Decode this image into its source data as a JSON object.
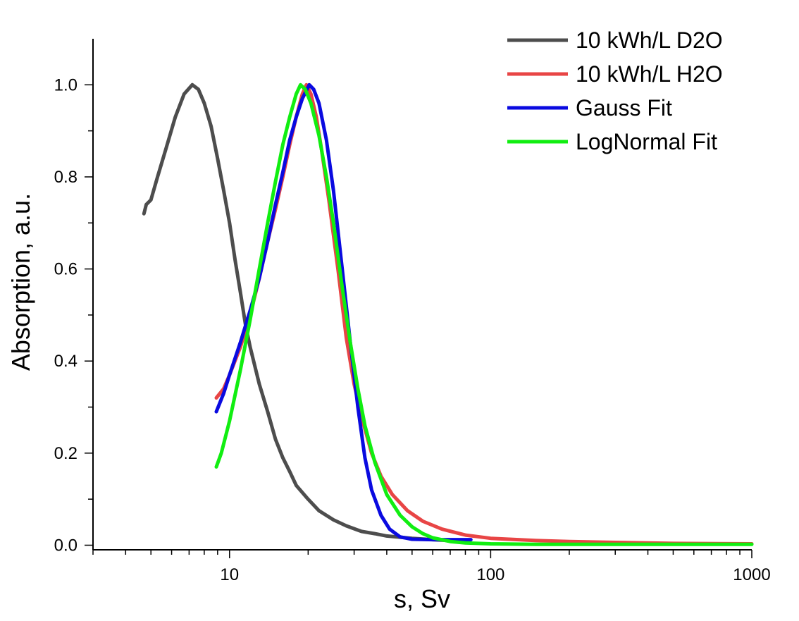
{
  "chart_data": {
    "type": "line",
    "title": "",
    "xlabel": "s, Sv",
    "ylabel": "Absorption, a.u.",
    "xscale": "log",
    "xlim": [
      3,
      1000
    ],
    "ylim": [
      -0.01,
      1.1
    ],
    "grid": false,
    "legend_position": "top-right",
    "x_ticks": [
      {
        "value": 10,
        "label": "10"
      },
      {
        "value": 100,
        "label": "100"
      },
      {
        "value": 1000,
        "label": "1000"
      }
    ],
    "y_ticks": [
      {
        "value": 0.0,
        "label": "0.0"
      },
      {
        "value": 0.2,
        "label": "0.2"
      },
      {
        "value": 0.4,
        "label": "0.4"
      },
      {
        "value": 0.6,
        "label": "0.6"
      },
      {
        "value": 0.8,
        "label": "0.8"
      },
      {
        "value": 1.0,
        "label": "1.0"
      }
    ],
    "series": [
      {
        "name": "10 kWh/L D2O",
        "color": "#4d4d4d",
        "points": [
          [
            4.7,
            0.72
          ],
          [
            4.8,
            0.74
          ],
          [
            5.0,
            0.75
          ],
          [
            5.3,
            0.8
          ],
          [
            5.7,
            0.86
          ],
          [
            6.2,
            0.93
          ],
          [
            6.7,
            0.98
          ],
          [
            7.2,
            1.0
          ],
          [
            7.6,
            0.99
          ],
          [
            8.0,
            0.96
          ],
          [
            8.5,
            0.91
          ],
          [
            9.0,
            0.84
          ],
          [
            9.5,
            0.77
          ],
          [
            10.0,
            0.7
          ],
          [
            10.5,
            0.62
          ],
          [
            11.0,
            0.55
          ],
          [
            11.5,
            0.48
          ],
          [
            12.0,
            0.43
          ],
          [
            13.0,
            0.35
          ],
          [
            14.0,
            0.29
          ],
          [
            15.0,
            0.23
          ],
          [
            16.0,
            0.19
          ],
          [
            17.0,
            0.16
          ],
          [
            18.0,
            0.13
          ],
          [
            20.0,
            0.1
          ],
          [
            22.0,
            0.075
          ],
          [
            25.0,
            0.055
          ],
          [
            28.0,
            0.042
          ],
          [
            32.0,
            0.03
          ],
          [
            36.0,
            0.025
          ],
          [
            40.0,
            0.02
          ],
          [
            50.0,
            0.015
          ],
          [
            60.0,
            0.012
          ],
          [
            70.0,
            0.01
          ],
          [
            80.0,
            0.01
          ]
        ]
      },
      {
        "name": "10 kWh/L H2O",
        "color": "#e84545",
        "points": [
          [
            8.9,
            0.32
          ],
          [
            9.5,
            0.34
          ],
          [
            10.0,
            0.37
          ],
          [
            11.0,
            0.43
          ],
          [
            12.0,
            0.5
          ],
          [
            13.0,
            0.58
          ],
          [
            14.0,
            0.66
          ],
          [
            15.0,
            0.73
          ],
          [
            16.0,
            0.8
          ],
          [
            17.0,
            0.87
          ],
          [
            18.0,
            0.93
          ],
          [
            19.0,
            0.98
          ],
          [
            19.7,
            1.0
          ],
          [
            20.5,
            0.98
          ],
          [
            21.5,
            0.93
          ],
          [
            22.5,
            0.86
          ],
          [
            24.0,
            0.75
          ],
          [
            26.0,
            0.6
          ],
          [
            28.0,
            0.45
          ],
          [
            30.0,
            0.35
          ],
          [
            32.0,
            0.28
          ],
          [
            35.0,
            0.2
          ],
          [
            38.0,
            0.15
          ],
          [
            42.0,
            0.11
          ],
          [
            48.0,
            0.075
          ],
          [
            55.0,
            0.052
          ],
          [
            65.0,
            0.035
          ],
          [
            80.0,
            0.022
          ],
          [
            100.0,
            0.015
          ],
          [
            150.0,
            0.01
          ],
          [
            200.0,
            0.008
          ],
          [
            300.0,
            0.006
          ],
          [
            500.0,
            0.004
          ],
          [
            1000.0,
            0.003
          ]
        ]
      },
      {
        "name": "Gauss Fit",
        "color": "#0a0ae0",
        "points": [
          [
            8.9,
            0.29
          ],
          [
            9.5,
            0.33
          ],
          [
            10.0,
            0.37
          ],
          [
            11.0,
            0.44
          ],
          [
            12.0,
            0.51
          ],
          [
            13.0,
            0.58
          ],
          [
            14.0,
            0.66
          ],
          [
            15.0,
            0.74
          ],
          [
            16.0,
            0.81
          ],
          [
            17.0,
            0.88
          ],
          [
            18.0,
            0.93
          ],
          [
            19.0,
            0.97
          ],
          [
            20.2,
            1.0
          ],
          [
            21.0,
            0.99
          ],
          [
            22.0,
            0.96
          ],
          [
            23.5,
            0.88
          ],
          [
            25.0,
            0.77
          ],
          [
            27.0,
            0.6
          ],
          [
            29.0,
            0.44
          ],
          [
            31.0,
            0.3
          ],
          [
            33.0,
            0.19
          ],
          [
            35.0,
            0.12
          ],
          [
            38.0,
            0.065
          ],
          [
            41.0,
            0.035
          ],
          [
            45.0,
            0.018
          ],
          [
            50.0,
            0.013
          ],
          [
            60.0,
            0.012
          ],
          [
            70.0,
            0.012
          ],
          [
            84.0,
            0.012
          ]
        ]
      },
      {
        "name": "LogNormal Fit",
        "color": "#11ee11",
        "points": [
          [
            8.9,
            0.17
          ],
          [
            9.3,
            0.2
          ],
          [
            10.0,
            0.27
          ],
          [
            11.0,
            0.38
          ],
          [
            12.0,
            0.49
          ],
          [
            13.0,
            0.6
          ],
          [
            14.0,
            0.7
          ],
          [
            15.0,
            0.79
          ],
          [
            16.0,
            0.87
          ],
          [
            17.0,
            0.93
          ],
          [
            18.0,
            0.98
          ],
          [
            18.7,
            1.0
          ],
          [
            19.5,
            0.99
          ],
          [
            20.5,
            0.96
          ],
          [
            22.0,
            0.89
          ],
          [
            23.5,
            0.8
          ],
          [
            25.0,
            0.7
          ],
          [
            27.0,
            0.56
          ],
          [
            29.0,
            0.44
          ],
          [
            31.0,
            0.34
          ],
          [
            33.0,
            0.26
          ],
          [
            36.0,
            0.18
          ],
          [
            40.0,
            0.11
          ],
          [
            45.0,
            0.065
          ],
          [
            50.0,
            0.04
          ],
          [
            55.0,
            0.025
          ],
          [
            60.0,
            0.016
          ],
          [
            70.0,
            0.008
          ],
          [
            80.0,
            0.005
          ],
          [
            100.0,
            0.003
          ],
          [
            150.0,
            0.002
          ],
          [
            1000.0,
            0.002
          ]
        ]
      }
    ]
  }
}
